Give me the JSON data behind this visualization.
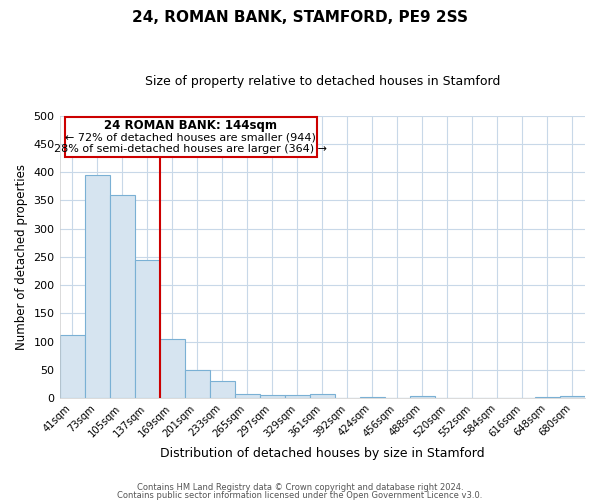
{
  "title": "24, ROMAN BANK, STAMFORD, PE9 2SS",
  "subtitle": "Size of property relative to detached houses in Stamford",
  "xlabel": "Distribution of detached houses by size in Stamford",
  "ylabel": "Number of detached properties",
  "bar_labels": [
    "41sqm",
    "73sqm",
    "105sqm",
    "137sqm",
    "169sqm",
    "201sqm",
    "233sqm",
    "265sqm",
    "297sqm",
    "329sqm",
    "361sqm",
    "392sqm",
    "424sqm",
    "456sqm",
    "488sqm",
    "520sqm",
    "552sqm",
    "584sqm",
    "616sqm",
    "648sqm",
    "680sqm"
  ],
  "bar_values": [
    112,
    394,
    360,
    245,
    105,
    50,
    30,
    8,
    5,
    5,
    8,
    0,
    2,
    0,
    3,
    0,
    0,
    0,
    0,
    2,
    4
  ],
  "bar_color": "#d6e4f0",
  "bar_edge_color": "#7ab0d4",
  "property_line_color": "#cc0000",
  "property_line_index": 3,
  "ylim": [
    0,
    500
  ],
  "yticks": [
    0,
    50,
    100,
    150,
    200,
    250,
    300,
    350,
    400,
    450,
    500
  ],
  "annotation_title": "24 ROMAN BANK: 144sqm",
  "annotation_line1": "← 72% of detached houses are smaller (944)",
  "annotation_line2": "28% of semi-detached houses are larger (364) →",
  "annotation_box_edge_color": "#cc0000",
  "footer_line1": "Contains HM Land Registry data © Crown copyright and database right 2024.",
  "footer_line2": "Contains public sector information licensed under the Open Government Licence v3.0.",
  "background_color": "#ffffff",
  "grid_color": "#c8d8e8"
}
